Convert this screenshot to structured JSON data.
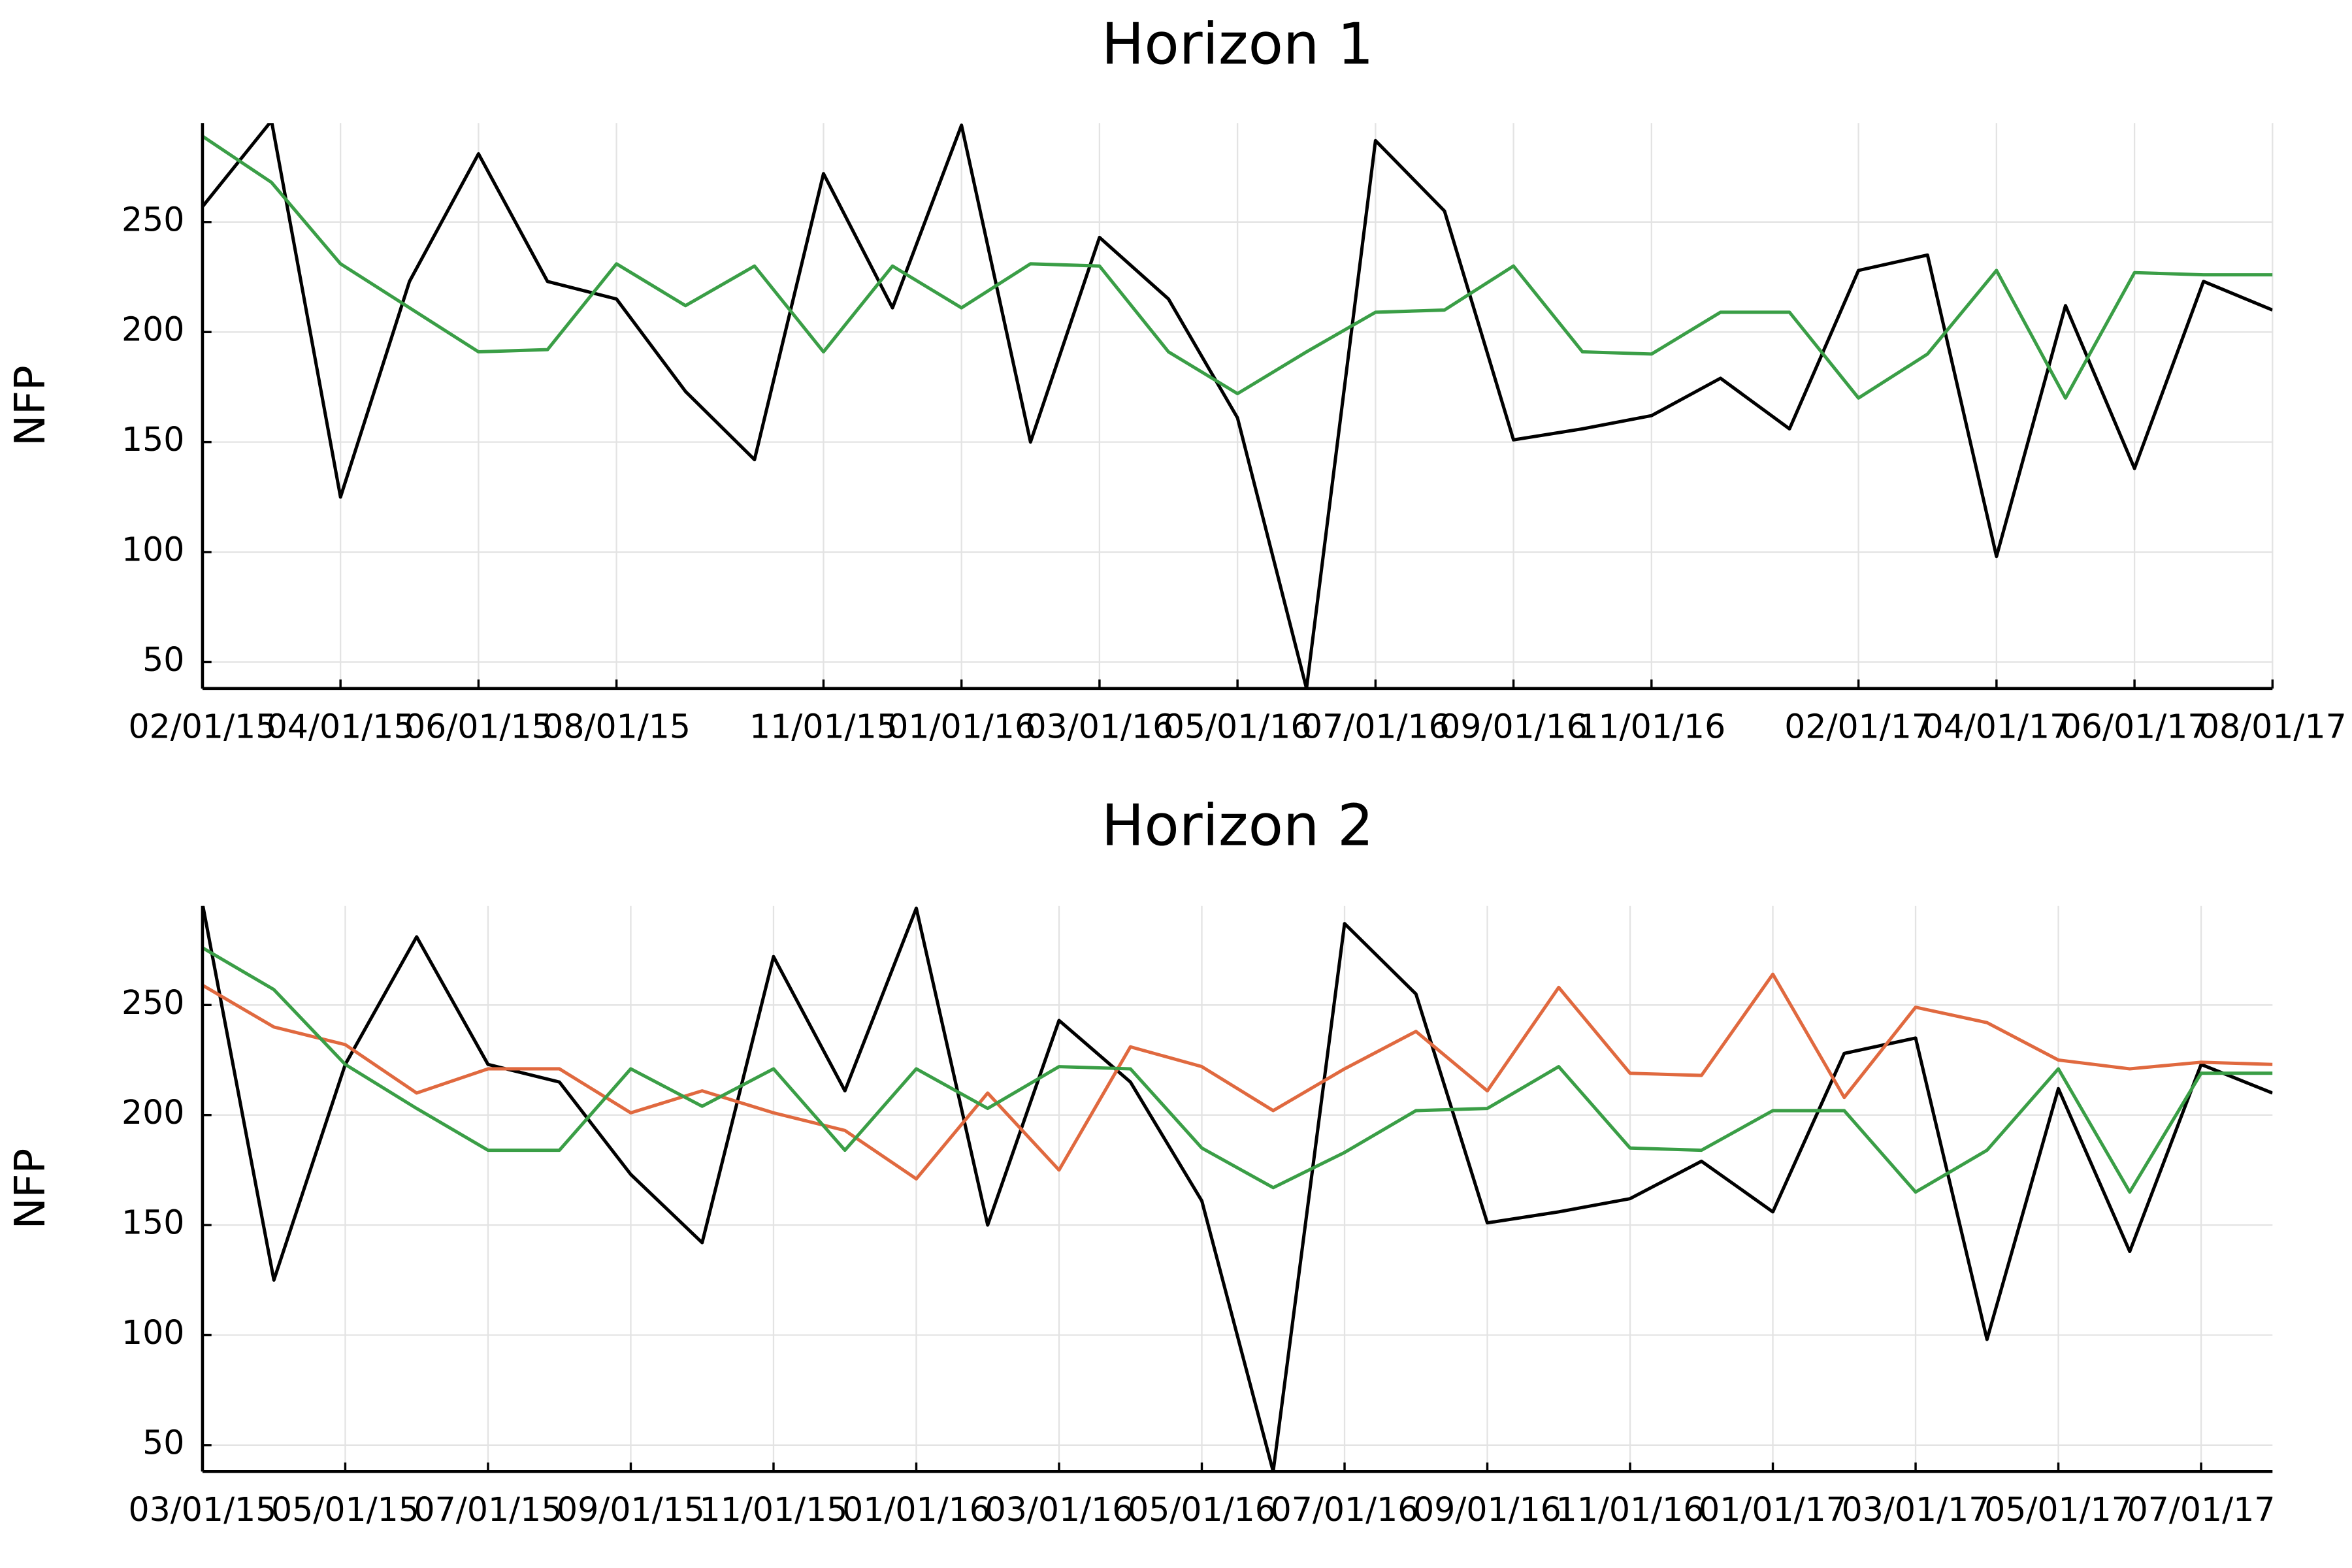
{
  "chart_data": [
    {
      "type": "line",
      "title": "Horizon 1",
      "y_label": "NFP",
      "categories": [
        "02/01/15",
        null,
        "04/01/15",
        null,
        "06/01/15",
        null,
        "08/01/15",
        null,
        null,
        "11/01/15",
        null,
        "01/01/16",
        null,
        "03/01/16",
        null,
        "05/01/16",
        null,
        "07/01/16",
        null,
        "09/01/16",
        null,
        "11/01/16",
        null,
        null,
        "02/01/17",
        null,
        "04/01/17",
        null,
        "06/01/17",
        null,
        "08/01/17"
      ],
      "series": [
        {
          "color": "#000000",
          "values": [
            257,
            296,
            125,
            223,
            281,
            223,
            215,
            173,
            142,
            272,
            211,
            294,
            150,
            243,
            215,
            161,
            38,
            287,
            255,
            151,
            156,
            162,
            179,
            156,
            228,
            235,
            98,
            212,
            138,
            223,
            210
          ]
        },
        {
          "color": "#3a9e46",
          "values": [
            289,
            268,
            231,
            211,
            191,
            192,
            231,
            212,
            230,
            191,
            230,
            211,
            231,
            230,
            191,
            172,
            191,
            209,
            210,
            230,
            191,
            190,
            209,
            209,
            170,
            190,
            228,
            170,
            227,
            226,
            226
          ]
        }
      ],
      "ylim": [
        38,
        295
      ],
      "yticks": [
        50,
        100,
        150,
        200,
        250
      ],
      "grid": true
    },
    {
      "type": "line",
      "title": "Horizon 2",
      "y_label": "NFP",
      "categories": [
        "03/01/15",
        null,
        "05/01/15",
        null,
        "07/01/15",
        null,
        "09/01/15",
        null,
        "11/01/15",
        null,
        "01/01/16",
        null,
        "03/01/16",
        null,
        "05/01/16",
        null,
        "07/01/16",
        null,
        "09/01/16",
        null,
        "11/01/16",
        null,
        "01/01/17",
        null,
        "03/01/17",
        null,
        "05/01/17",
        null,
        "07/01/17",
        null
      ],
      "series": [
        {
          "color": "#000000",
          "values": [
            296,
            125,
            223,
            281,
            223,
            215,
            173,
            142,
            272,
            211,
            294,
            150,
            243,
            215,
            161,
            38,
            287,
            255,
            151,
            156,
            162,
            179,
            156,
            228,
            235,
            98,
            212,
            138,
            223,
            210
          ]
        },
        {
          "color": "#e0693f",
          "values": [
            259,
            240,
            232,
            210,
            221,
            221,
            201,
            211,
            201,
            193,
            171,
            210,
            175,
            231,
            222,
            202,
            221,
            238,
            211,
            258,
            219,
            218,
            264,
            208,
            249,
            242,
            225,
            221,
            224,
            223
          ]
        },
        {
          "color": "#3a9e46",
          "values": [
            276,
            257,
            223,
            203,
            184,
            184,
            221,
            204,
            221,
            184,
            221,
            203,
            222,
            221,
            185,
            167,
            183,
            202,
            203,
            222,
            185,
            184,
            202,
            202,
            165,
            184,
            221,
            165,
            219,
            219
          ]
        }
      ],
      "ylim": [
        38,
        295
      ],
      "yticks": [
        50,
        100,
        150,
        200,
        250
      ],
      "grid": true
    }
  ]
}
